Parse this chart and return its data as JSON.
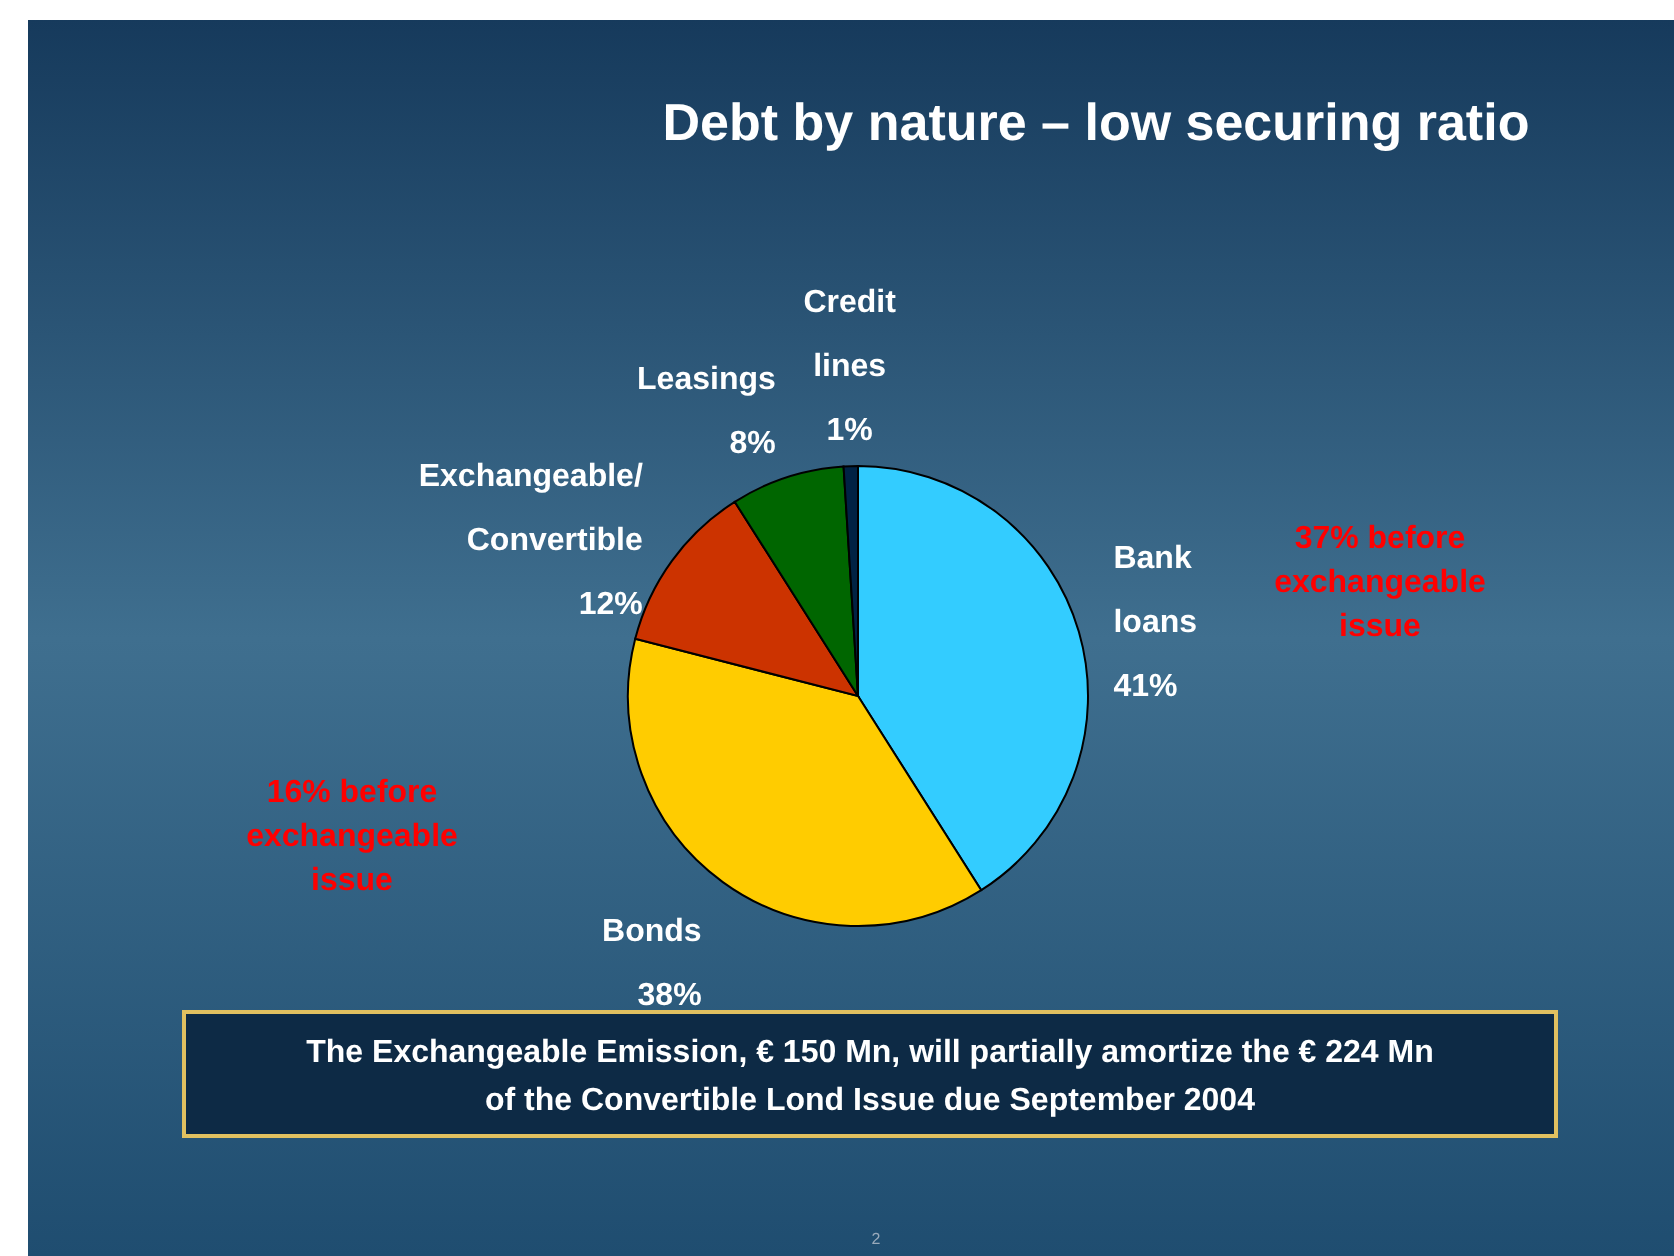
{
  "chart_data": {
    "type": "pie",
    "title": "Debt by nature – low securing ratio",
    "categories": [
      "Bank loans",
      "Bonds",
      "Exchangeable/ Convertible",
      "Leasings",
      "Credit lines"
    ],
    "values": [
      41,
      38,
      12,
      8,
      1
    ],
    "value_labels": [
      "41%",
      "38%",
      "12%",
      "8%",
      "1%"
    ],
    "colors": [
      "#33ccff",
      "#ffcc00",
      "#cc3300",
      "#006600",
      "#002244"
    ],
    "annotations": [
      "37% before exchangeable issue",
      "16% before exchangeable issue",
      "The Exchangeable Emission, € 150 Mn, will partially amortize the € 224 Mn of the Convertible Lond Issue due September 2004",
      "2"
    ],
    "legend": false
  }
}
